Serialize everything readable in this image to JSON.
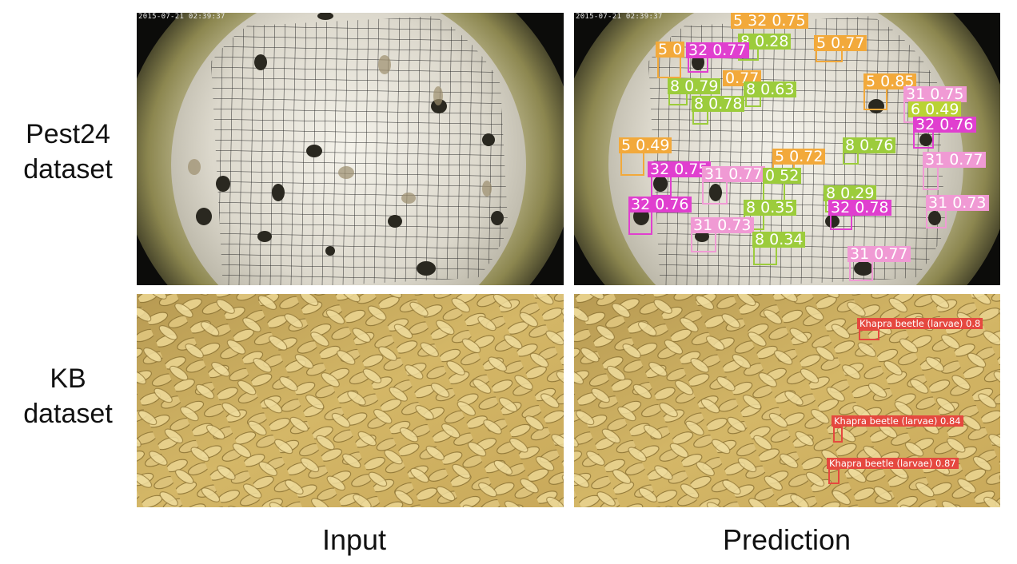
{
  "rows": [
    {
      "label_line1": "Pest24",
      "label_line2": "dataset"
    },
    {
      "label_line1": "KB",
      "label_line2": "dataset"
    }
  ],
  "columns": {
    "input": "Input",
    "prediction": "Prediction"
  },
  "timestamp": "2015-07-21 02:39:37",
  "colors": {
    "cls5": "#f2a93b",
    "cls8": "#9ccc3c",
    "cls32": "#e03fcf",
    "cls31": "#f09ad4",
    "cls6": "#b9d334",
    "kb": "#e5483f"
  },
  "pest24_detections": [
    {
      "text": "5 32 0.75",
      "color": "cls5"
    },
    {
      "text": "8 0.28",
      "color": "cls8"
    },
    {
      "text": "5 0.77",
      "color": "cls5"
    },
    {
      "text": "5 0",
      "color": "cls5"
    },
    {
      "text": "32 0.77",
      "color": "cls32"
    },
    {
      "text": "0.77",
      "color": "cls5"
    },
    {
      "text": "8 0.79",
      "color": "cls8"
    },
    {
      "text": "8 0.63",
      "color": "cls8"
    },
    {
      "text": "8 0.78",
      "color": "cls8"
    },
    {
      "text": "5 0.85",
      "color": "cls5"
    },
    {
      "text": "31 0.75",
      "color": "cls31"
    },
    {
      "text": "6 0.49",
      "color": "cls6"
    },
    {
      "text": "32 0.76",
      "color": "cls32"
    },
    {
      "text": "5 0.49",
      "color": "cls5"
    },
    {
      "text": "5 0.72",
      "color": "cls5"
    },
    {
      "text": "8 0.76",
      "color": "cls8"
    },
    {
      "text": "31 0.77",
      "color": "cls31"
    },
    {
      "text": "32 0.75",
      "color": "cls32"
    },
    {
      "text": "31 0.77",
      "color": "cls31"
    },
    {
      "text": "0 52",
      "color": "cls8"
    },
    {
      "text": "8 0.29",
      "color": "cls8"
    },
    {
      "text": "32 0.76",
      "color": "cls32"
    },
    {
      "text": "8 0.35",
      "color": "cls8"
    },
    {
      "text": "32 0.78",
      "color": "cls32"
    },
    {
      "text": "31 0.73",
      "color": "cls31"
    },
    {
      "text": "31 0.73",
      "color": "cls31"
    },
    {
      "text": "8 0.34",
      "color": "cls8"
    },
    {
      "text": "31 0.77",
      "color": "cls31"
    }
  ],
  "kb_detections": [
    {
      "text": "Khapra beetle (larvae) 0.8"
    },
    {
      "text": "Khapra beetle (larvae) 0.84"
    },
    {
      "text": "Khapra beetle (larvae) 0.87"
    }
  ]
}
